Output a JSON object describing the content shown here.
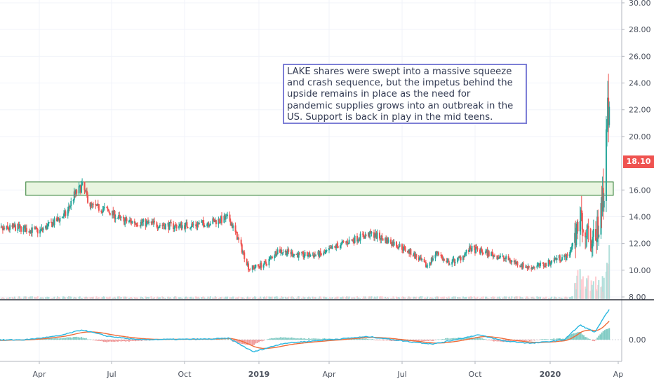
{
  "colors": {
    "up": "#26a69a",
    "down": "#ef5350",
    "macd": "#2ab7e0",
    "signal": "#ef6c39",
    "zone_fill": "#e8f5e0",
    "zone_stroke": "#2e7d32",
    "grid": "#f0f3fa",
    "axis_text": "#4c525e",
    "annotation_border": "#7d7fd6"
  },
  "price_axis": {
    "ticks": [
      "30.00",
      "28.00",
      "26.00",
      "24.00",
      "22.00",
      "20.00",
      "16.00",
      "14.00",
      "12.00",
      "10.00",
      "8.00"
    ]
  },
  "macd_axis": {
    "ticks": [
      "0.00"
    ]
  },
  "time_axis": {
    "labels": [
      "Apr",
      "Jul",
      "Oct",
      "2019",
      "Apr",
      "Jul",
      "Oct",
      "2020",
      "Ap"
    ]
  },
  "last_price": "18.10",
  "annotation": {
    "lines": [
      "LAKE shares were swept into a massive squeeze",
      "and crash sequence, but the impetus behind the",
      "upside remains in place as the need for",
      "pandemic supplies grows into an outbreak in the",
      "US. Support is back in play in the mid teens."
    ]
  },
  "chart_data": {
    "type": "candlestick",
    "y_range": [
      8,
      30
    ],
    "x_range": [
      "2018-02",
      "2020-04"
    ],
    "support_zone": [
      15.6,
      16.6
    ],
    "price_path": [
      [
        "2018-02-01",
        12.9
      ],
      [
        "2018-03-01",
        13.2
      ],
      [
        "2018-04-01",
        12.9
      ],
      [
        "2018-04-20",
        13.6
      ],
      [
        "2018-05-05",
        14.2
      ],
      [
        "2018-05-15",
        15.6
      ],
      [
        "2018-05-25",
        16.3
      ],
      [
        "2018-06-05",
        14.8
      ],
      [
        "2018-06-25",
        14.5
      ],
      [
        "2018-07-15",
        13.7
      ],
      [
        "2018-08-15",
        13.5
      ],
      [
        "2018-09-15",
        13.3
      ],
      [
        "2018-10-15",
        13.4
      ],
      [
        "2018-11-10",
        13.7
      ],
      [
        "2018-11-25",
        13.9
      ],
      [
        "2018-12-05",
        12.5
      ],
      [
        "2018-12-20",
        10.1
      ],
      [
        "2019-01-10",
        10.5
      ],
      [
        "2019-01-25",
        11.5
      ],
      [
        "2019-02-25",
        11.1
      ],
      [
        "2019-03-25",
        11.2
      ],
      [
        "2019-04-10",
        11.8
      ],
      [
        "2019-05-10",
        12.5
      ],
      [
        "2019-05-25",
        12.7
      ],
      [
        "2019-06-25",
        11.9
      ],
      [
        "2019-07-15",
        11.2
      ],
      [
        "2019-08-01",
        10.3
      ],
      [
        "2019-08-15",
        11.4
      ],
      [
        "2019-08-25",
        10.5
      ],
      [
        "2019-09-10",
        10.8
      ],
      [
        "2019-09-25",
        11.6
      ],
      [
        "2019-10-15",
        11.3
      ],
      [
        "2019-11-10",
        10.8
      ],
      [
        "2019-12-05",
        10.2
      ],
      [
        "2019-12-25",
        10.4
      ],
      [
        "2020-01-10",
        10.9
      ],
      [
        "2020-01-25",
        11.0
      ],
      [
        "2020-02-03",
        12.5
      ],
      [
        "2020-02-10",
        14.0
      ],
      [
        "2020-02-20",
        13.0
      ],
      [
        "2020-03-01",
        12.1
      ],
      [
        "2020-03-10",
        14.5
      ],
      [
        "2020-03-15",
        18.0
      ],
      [
        "2020-03-18",
        25.0
      ],
      [
        "2020-03-21",
        18.1
      ]
    ],
    "macd_path": [
      [
        "2018-02-01",
        -0.05
      ],
      [
        "2018-03-15",
        0.0
      ],
      [
        "2018-04-25",
        0.3
      ],
      [
        "2018-05-25",
        0.8
      ],
      [
        "2018-06-25",
        0.3
      ],
      [
        "2018-08-01",
        0.0
      ],
      [
        "2018-11-01",
        0.05
      ],
      [
        "2018-11-25",
        0.12
      ],
      [
        "2018-12-25",
        -1.0
      ],
      [
        "2019-02-01",
        -0.3
      ],
      [
        "2019-04-01",
        0.0
      ],
      [
        "2019-05-20",
        0.25
      ],
      [
        "2019-07-15",
        -0.2
      ],
      [
        "2019-08-10",
        -0.35
      ],
      [
        "2019-09-10",
        0.05
      ],
      [
        "2019-10-05",
        0.4
      ],
      [
        "2019-11-05",
        -0.1
      ],
      [
        "2019-12-10",
        -0.3
      ],
      [
        "2020-01-20",
        0.0
      ],
      [
        "2020-02-10",
        1.2
      ],
      [
        "2020-03-01",
        0.6
      ],
      [
        "2020-03-21",
        2.6
      ]
    ]
  }
}
